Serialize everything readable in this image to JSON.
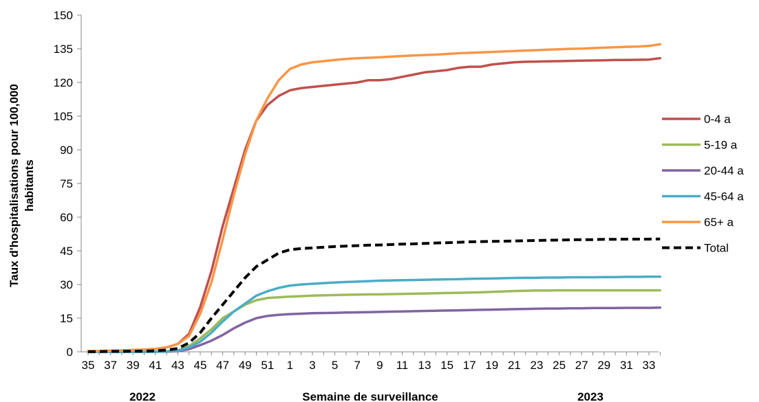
{
  "chart_data": {
    "type": "line",
    "ylabel_line1": "Taux d'hospitalisations pour 100,000",
    "ylabel_line2": "habitants",
    "xlabel": "Semaine de surveillance",
    "year_labels": [
      "2022",
      "2023"
    ],
    "ylim": [
      0,
      150
    ],
    "yticks": [
      0,
      15,
      30,
      45,
      60,
      75,
      90,
      105,
      120,
      135,
      150
    ],
    "x": [
      35,
      36,
      37,
      38,
      39,
      40,
      41,
      42,
      43,
      44,
      45,
      46,
      47,
      48,
      49,
      50,
      51,
      52,
      1,
      2,
      3,
      4,
      5,
      6,
      7,
      8,
      9,
      10,
      11,
      12,
      13,
      14,
      15,
      16,
      17,
      18,
      19,
      20,
      21,
      22,
      23,
      24,
      25,
      26,
      27,
      28,
      29,
      30,
      31,
      32,
      33,
      34
    ],
    "xtick_labels": [
      "35",
      "37",
      "39",
      "41",
      "43",
      "45",
      "47",
      "49",
      "51",
      "1",
      "3",
      "5",
      "7",
      "9",
      "11",
      "13",
      "15",
      "17",
      "19",
      "21",
      "23",
      "25",
      "27",
      "29",
      "31",
      "33"
    ],
    "legend_position": "right",
    "grid": false,
    "series": [
      {
        "name": "0-4 a",
        "color": "#C0504D",
        "dashed": false,
        "values": [
          0.3,
          0.4,
          0.5,
          0.6,
          0.8,
          1.0,
          1.3,
          2.0,
          3.5,
          8,
          20,
          36,
          56,
          73,
          90,
          103,
          110,
          114,
          116.5,
          117.5,
          118,
          118.5,
          119,
          119.5,
          120,
          121,
          121,
          121.5,
          122.5,
          123.5,
          124.5,
          125,
          125.5,
          126.5,
          127,
          127,
          128,
          128.5,
          129,
          129.2,
          129.3,
          129.4,
          129.5,
          129.6,
          129.7,
          129.8,
          129.9,
          130,
          130,
          130.1,
          130.2,
          130.8
        ]
      },
      {
        "name": "5-19 a",
        "color": "#9BBB59",
        "dashed": false,
        "values": [
          0,
          0,
          0,
          0,
          0,
          0,
          0.1,
          0.2,
          0.6,
          2.5,
          6,
          10,
          15,
          18,
          21,
          23,
          24,
          24.3,
          24.6,
          24.8,
          25,
          25.2,
          25.3,
          25.4,
          25.5,
          25.6,
          25.6,
          25.7,
          25.8,
          25.9,
          26,
          26.1,
          26.2,
          26.3,
          26.4,
          26.5,
          26.7,
          26.9,
          27.1,
          27.2,
          27.3,
          27.3,
          27.4,
          27.4,
          27.4,
          27.4,
          27.4,
          27.4,
          27.4,
          27.4,
          27.4,
          27.4
        ]
      },
      {
        "name": "20-44 a",
        "color": "#8064A2",
        "dashed": false,
        "values": [
          0,
          0,
          0,
          0,
          0,
          0,
          0,
          0.1,
          0.3,
          1.2,
          3,
          5,
          7.5,
          10.5,
          13,
          15,
          16,
          16.5,
          16.8,
          17,
          17.2,
          17.3,
          17.4,
          17.5,
          17.6,
          17.7,
          17.8,
          17.9,
          18,
          18.1,
          18.2,
          18.3,
          18.4,
          18.5,
          18.6,
          18.7,
          18.8,
          18.9,
          19,
          19.1,
          19.2,
          19.3,
          19.3,
          19.4,
          19.4,
          19.5,
          19.5,
          19.5,
          19.6,
          19.6,
          19.6,
          19.7
        ]
      },
      {
        "name": "45-64 a",
        "color": "#4BACC6",
        "dashed": false,
        "values": [
          0,
          0,
          0,
          0,
          0,
          0,
          0.1,
          0.2,
          0.5,
          2,
          4.5,
          8.5,
          13.5,
          18,
          21.5,
          25,
          27,
          28.5,
          29.5,
          30,
          30.3,
          30.6,
          30.9,
          31.1,
          31.3,
          31.5,
          31.7,
          31.8,
          31.9,
          32,
          32.1,
          32.2,
          32.3,
          32.4,
          32.5,
          32.6,
          32.7,
          32.8,
          32.9,
          33,
          33,
          33.1,
          33.1,
          33.2,
          33.2,
          33.2,
          33.3,
          33.3,
          33.4,
          33.4,
          33.5,
          33.5
        ]
      },
      {
        "name": "65+ a",
        "color": "#F79646",
        "dashed": false,
        "values": [
          0.3,
          0.4,
          0.5,
          0.6,
          0.8,
          1.0,
          1.3,
          2.0,
          3.5,
          7,
          17,
          31,
          50,
          70,
          88,
          103,
          113,
          121,
          126,
          128,
          129,
          129.5,
          130,
          130.5,
          130.8,
          131,
          131.2,
          131.5,
          131.8,
          132,
          132.2,
          132.4,
          132.7,
          133,
          133.2,
          133.4,
          133.6,
          133.8,
          134,
          134.2,
          134.4,
          134.6,
          134.8,
          135,
          135.1,
          135.3,
          135.5,
          135.7,
          135.9,
          136,
          136.3,
          137
        ]
      },
      {
        "name": "Total",
        "color": "#000000",
        "dashed": true,
        "values": [
          0.1,
          0.1,
          0.2,
          0.2,
          0.3,
          0.3,
          0.5,
          0.8,
          1.5,
          4,
          8.5,
          15,
          21,
          27,
          33,
          38,
          41,
          44,
          45.5,
          46,
          46.3,
          46.6,
          46.9,
          47.1,
          47.3,
          47.5,
          47.6,
          47.8,
          48,
          48.1,
          48.3,
          48.5,
          48.6,
          48.8,
          49,
          49.1,
          49.2,
          49.3,
          49.4,
          49.5,
          49.6,
          49.7,
          49.8,
          49.9,
          50,
          50,
          50.1,
          50.1,
          50.2,
          50.2,
          50.2,
          50.3
        ]
      }
    ]
  }
}
